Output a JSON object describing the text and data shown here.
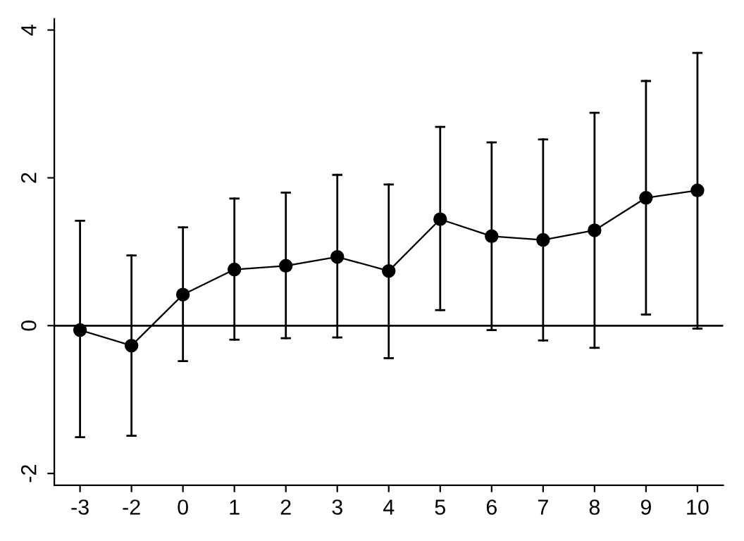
{
  "chart_data": {
    "type": "line",
    "categories": [
      "-3",
      "-2",
      "0",
      "1",
      "2",
      "3",
      "4",
      "5",
      "6",
      "7",
      "8",
      "9",
      "10"
    ],
    "series": [
      {
        "color": "#000000",
        "values": [
          -0.06,
          -0.27,
          0.42,
          0.76,
          0.81,
          0.93,
          0.74,
          1.44,
          1.21,
          1.16,
          1.29,
          1.73,
          1.83
        ],
        "errors": [
          [
            -1.51,
            1.42
          ],
          [
            -1.49,
            0.95
          ],
          [
            -0.48,
            1.33
          ],
          [
            -0.19,
            1.72
          ],
          [
            -0.17,
            1.8
          ],
          [
            -0.16,
            2.04
          ],
          [
            -0.44,
            1.91
          ],
          [
            0.21,
            2.69
          ],
          [
            -0.06,
            2.48
          ],
          [
            -0.2,
            2.52
          ],
          [
            -0.3,
            2.88
          ],
          [
            0.15,
            3.31
          ],
          [
            -0.04,
            3.69
          ]
        ]
      }
    ],
    "ylim": [
      -2.16,
      4.15
    ],
    "yticks": [
      -2,
      0,
      2,
      4
    ],
    "ref_lines": [
      {
        "axis": "y",
        "value": 0,
        "color": "#000000"
      }
    ],
    "marker": "circle",
    "line_style": "solid",
    "grid": false,
    "legend": false
  }
}
